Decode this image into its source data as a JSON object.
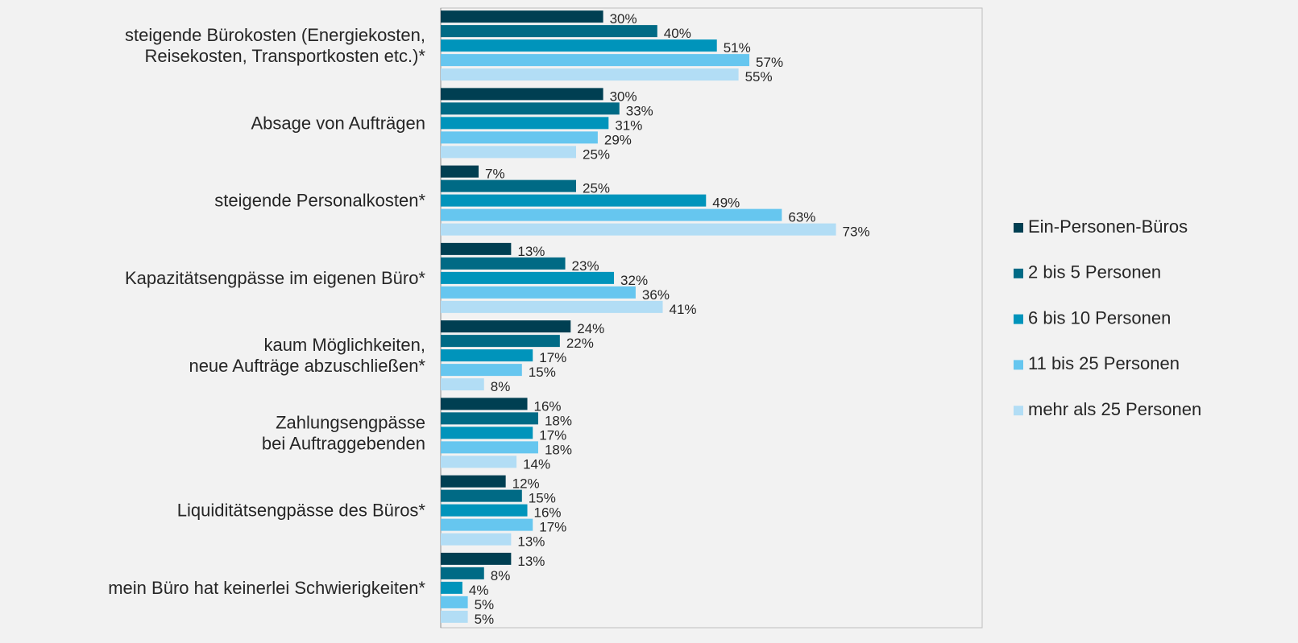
{
  "chart_data": {
    "type": "hbar",
    "categories": [
      "steigende Bürokosten (Energiekosten,\nReisekosten, Transportkosten etc.)*",
      "Absage von Aufträgen",
      "steigende Personalkosten*",
      "Kapazitätsengpässe im eigenen Büro*",
      "kaum Möglichkeiten,\nneue Aufträge abzuschließen*",
      "Zahlungsengpässe\nbei Auftraggebenden",
      "Liquiditätsengpässe des Büros*",
      "mein Büro hat keinerlei Schwierigkeiten*"
    ],
    "xlim": [
      0,
      100
    ],
    "legend": "right",
    "series": [
      {
        "name": "Ein-Personen-Büros",
        "color": "#003f52",
        "values": [
          30,
          30,
          7,
          13,
          24,
          16,
          12,
          13
        ],
        "value_labels": [
          "30%",
          "30%",
          "7%",
          "13%",
          "24%",
          "16%",
          "12%",
          "13%"
        ]
      },
      {
        "name": "2 bis 5 Personen",
        "color": "#006a85",
        "values": [
          40,
          33,
          25,
          23,
          22,
          18,
          15,
          8
        ],
        "value_labels": [
          "40%",
          "33%",
          "25%",
          "23%",
          "22%",
          "18%",
          "15%",
          "8%"
        ]
      },
      {
        "name": "6 bis 10 Personen",
        "color": "#0094bb",
        "values": [
          51,
          31,
          49,
          32,
          17,
          17,
          16,
          4
        ],
        "value_labels": [
          "51%",
          "31%",
          "49%",
          "32%",
          "17%",
          "17%",
          "16%",
          "4%"
        ]
      },
      {
        "name": "11 bis 25 Personen",
        "color": "#66c6ef",
        "values": [
          57,
          29,
          63,
          36,
          15,
          18,
          17,
          5
        ],
        "value_labels": [
          "57%",
          "29%",
          "63%",
          "36%",
          "15%",
          "18%",
          "17%",
          "5%"
        ]
      },
      {
        "name": "mehr als 25 Personen",
        "color": "#b2ddf5",
        "values": [
          55,
          25,
          73,
          41,
          8,
          14,
          13,
          5
        ],
        "value_labels": [
          "55%",
          "25%",
          "73%",
          "41%",
          "8%",
          "14%",
          "13%",
          "5%"
        ]
      }
    ]
  }
}
